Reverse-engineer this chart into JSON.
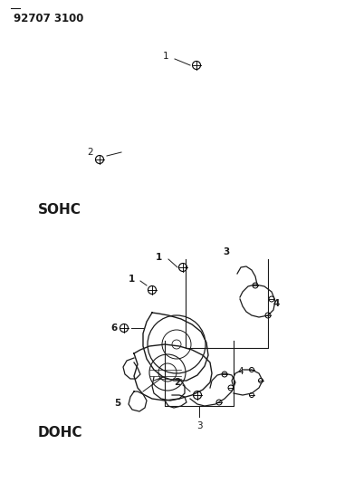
{
  "background_color": "#ffffff",
  "line_color": "#1a1a1a",
  "figsize": [
    3.91,
    5.33
  ],
  "dpi": 100,
  "sohc_label": "SOHC",
  "dohc_label": "DOHC",
  "header_text": "92707 3100"
}
